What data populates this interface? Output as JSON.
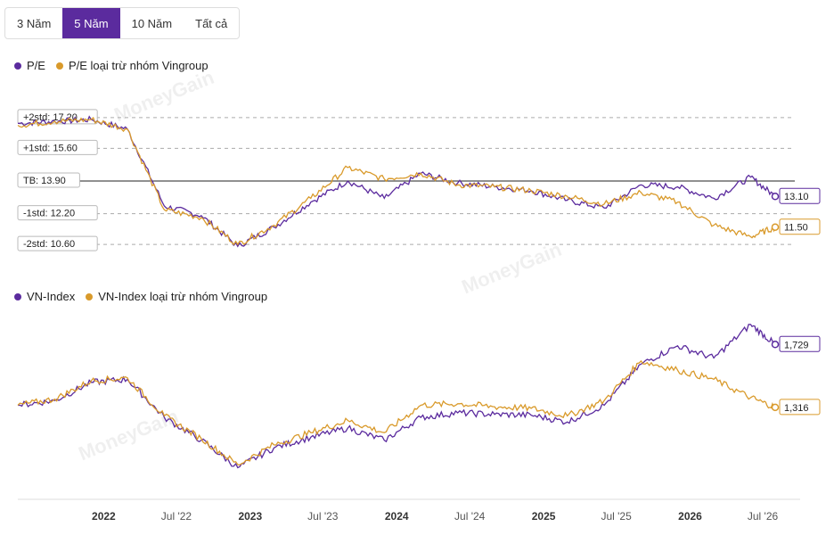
{
  "tabs": [
    {
      "label": "3 Năm",
      "active": false
    },
    {
      "label": "5 Năm",
      "active": true
    },
    {
      "label": "10 Năm",
      "active": false
    },
    {
      "label": "Tất cả",
      "active": false
    }
  ],
  "watermark": "MoneyGain",
  "colors": {
    "purple": "#5b2b9e",
    "gold": "#d99a2b",
    "active_tab": "#5b2b9e"
  },
  "chart_data": [
    {
      "type": "line",
      "legend": [
        "P/E",
        "P/E loại trừ nhóm Vingroup"
      ],
      "x": [
        "2021-06",
        "2021-09",
        "2021-12",
        "2022-03",
        "2022-06",
        "2022-09",
        "2022-12",
        "2023-03",
        "2023-06",
        "2023-09",
        "2023-12",
        "2024-03",
        "2024-06",
        "2024-09",
        "2024-12",
        "2025-03",
        "2025-06",
        "2025-09",
        "2025-12",
        "2026-03",
        "2026-06",
        "2026-08"
      ],
      "series": [
        {
          "name": "P/E",
          "color": "#5b2b9e",
          "values": [
            16.9,
            17.0,
            17.1,
            16.6,
            12.6,
            12.1,
            10.5,
            11.5,
            12.8,
            13.9,
            13.0,
            14.3,
            13.8,
            13.6,
            13.4,
            12.9,
            12.5,
            13.7,
            13.6,
            13.0,
            14.1,
            13.1
          ]
        },
        {
          "name": "P/E loại trừ nhóm Vingroup",
          "color": "#d99a2b",
          "values": [
            16.8,
            17.0,
            17.1,
            16.6,
            12.4,
            12.0,
            10.6,
            11.6,
            13.0,
            14.6,
            14.0,
            14.3,
            13.7,
            13.6,
            13.4,
            13.1,
            12.7,
            13.3,
            12.8,
            11.6,
            11.0,
            11.5
          ]
        }
      ],
      "reference_lines": [
        {
          "label": "+2std: 17.20",
          "value": 17.2,
          "style": "dashed"
        },
        {
          "label": "+1std: 15.60",
          "value": 15.6,
          "style": "dashed"
        },
        {
          "label": "TB: 13.90",
          "value": 13.9,
          "style": "solid"
        },
        {
          "label": "-1std: 12.20",
          "value": 12.2,
          "style": "dashed"
        },
        {
          "label": "-2std: 10.60",
          "value": 10.6,
          "style": "dashed"
        }
      ],
      "end_labels": [
        "13.10",
        "11.50"
      ],
      "ylim": [
        9.4,
        18.4
      ]
    },
    {
      "type": "line",
      "legend": [
        "VN-Index",
        "VN-Index loại trừ nhóm Vingroup"
      ],
      "x": [
        "2021-06",
        "2021-09",
        "2021-12",
        "2022-03",
        "2022-06",
        "2022-09",
        "2022-12",
        "2023-03",
        "2023-06",
        "2023-09",
        "2023-12",
        "2024-03",
        "2024-06",
        "2024-09",
        "2024-12",
        "2025-03",
        "2025-06",
        "2025-09",
        "2025-12",
        "2026-03",
        "2026-06",
        "2026-08"
      ],
      "series": [
        {
          "name": "VN-Index",
          "color": "#5b2b9e",
          "values": [
            1330,
            1360,
            1480,
            1500,
            1250,
            1100,
            920,
            1050,
            1120,
            1180,
            1100,
            1250,
            1280,
            1270,
            1265,
            1220,
            1330,
            1600,
            1720,
            1640,
            1860,
            1729
          ]
        },
        {
          "name": "VN-Index loại trừ nhóm Vingroup",
          "color": "#d99a2b",
          "values": [
            1330,
            1370,
            1490,
            1510,
            1260,
            1110,
            940,
            1070,
            1150,
            1230,
            1150,
            1330,
            1340,
            1320,
            1310,
            1260,
            1360,
            1620,
            1560,
            1500,
            1380,
            1316
          ]
        }
      ],
      "end_labels": [
        "1,729",
        "1,316"
      ],
      "ylim": [
        800,
        2000
      ]
    }
  ],
  "x_axis": {
    "ticks": [
      {
        "label": "2022",
        "date": "2022-01",
        "bold": true
      },
      {
        "label": "Jul '22",
        "date": "2022-07",
        "bold": false
      },
      {
        "label": "2023",
        "date": "2023-01",
        "bold": true
      },
      {
        "label": "Jul '23",
        "date": "2023-07",
        "bold": false
      },
      {
        "label": "2024",
        "date": "2024-01",
        "bold": true
      },
      {
        "label": "Jul '24",
        "date": "2024-07",
        "bold": false
      },
      {
        "label": "2025",
        "date": "2025-01",
        "bold": true
      },
      {
        "label": "Jul '25",
        "date": "2025-07",
        "bold": false
      },
      {
        "label": "2026",
        "date": "2026-01",
        "bold": true
      },
      {
        "label": "Jul '26",
        "date": "2026-07",
        "bold": false
      }
    ]
  }
}
